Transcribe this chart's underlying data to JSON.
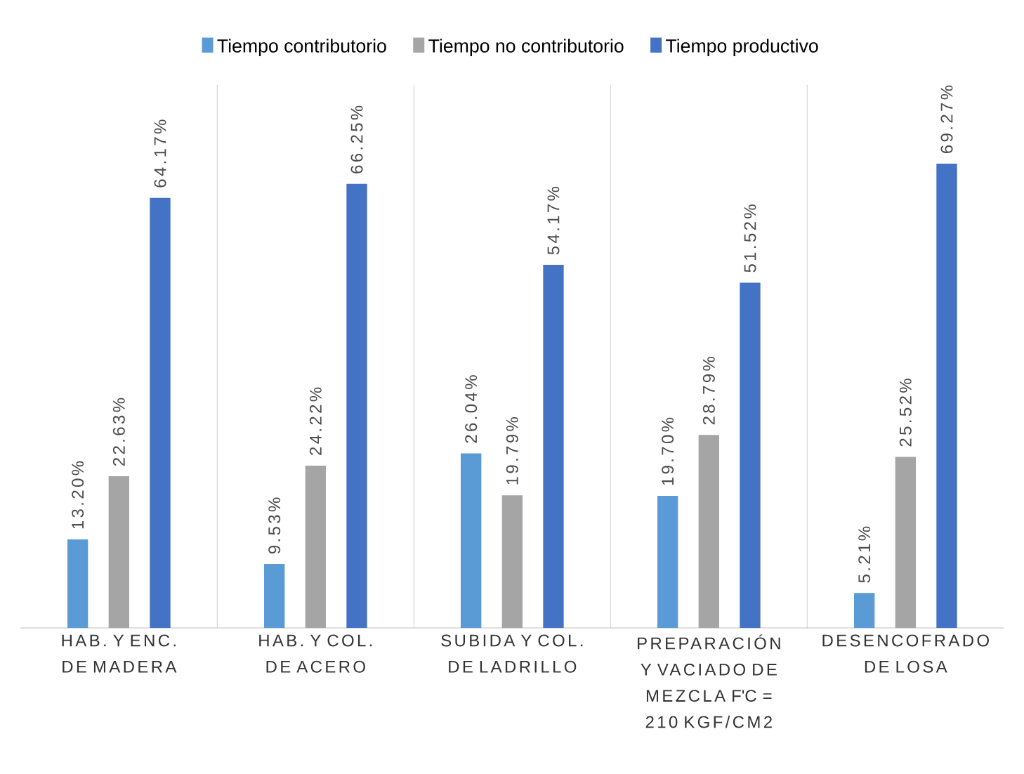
{
  "chart_data": {
    "type": "bar",
    "categories": [
      "HAB. Y ENC. DE MADERA",
      "HAB.  Y COL. DE ACERO",
      "SUBIDA Y COL. DE LADRILLO",
      "PREPARACIÓN Y VACIADO DE MEZCLA F'C = 210 KGF/CM2",
      "DESENCOFRADO DE LOSA"
    ],
    "series": [
      {
        "name": "Tiempo contributorio",
        "color": "#5b9bd5",
        "values": [
          13.2,
          9.53,
          26.04,
          19.7,
          5.21
        ],
        "value_labels": [
          "13.20%",
          "9.53%",
          "26.04%",
          "19.70%",
          "5.21%"
        ]
      },
      {
        "name": "Tiempo no contributorio",
        "color": "#a5a5a5",
        "values": [
          22.63,
          24.22,
          19.79,
          28.79,
          25.52
        ],
        "value_labels": [
          "22.63%",
          "24.22%",
          "19.79%",
          "28.79%",
          "25.52%"
        ]
      },
      {
        "name": "Tiempo productivo",
        "color": "#4472c4",
        "values": [
          64.17,
          66.25,
          54.17,
          51.52,
          69.27
        ],
        "value_labels": [
          "64.17%",
          "66.25%",
          "54.17%",
          "51.52%",
          "69.27%"
        ]
      }
    ],
    "legend": "top",
    "grid": "x",
    "tick_labels": "x"
  }
}
